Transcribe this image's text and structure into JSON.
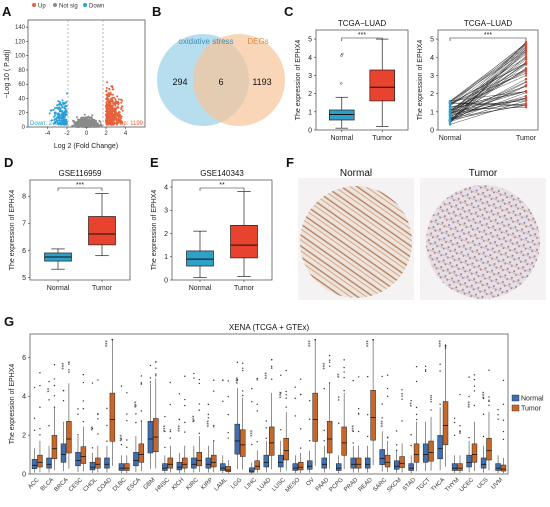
{
  "panels": {
    "A": {
      "letter": "A"
    },
    "B": {
      "letter": "B"
    },
    "C": {
      "letter": "C"
    },
    "D": {
      "letter": "D"
    },
    "E": {
      "letter": "E"
    },
    "F": {
      "letter": "F"
    },
    "G": {
      "letter": "G"
    }
  },
  "colors": {
    "up": "#e8603c",
    "down": "#2a9fd6",
    "notsig": "#8a8a8a",
    "normal": "#2fa0c8",
    "tumor": "#e8432e",
    "g_normal": "#3f6fb0",
    "g_tumor": "#c7672a"
  },
  "chart_data": [
    {
      "id": "A",
      "type": "scatter",
      "legend": [
        "Up",
        "Not sig",
        "Down"
      ],
      "xlabel": "Log 2 (Fold Change)",
      "ylabel": "−Log 10 ( P.adj)",
      "xticks": [
        "-4",
        "-2",
        "0",
        "2",
        "4"
      ],
      "yticks": [
        "0",
        "20",
        "40",
        "60",
        "80",
        "100",
        "120",
        "140"
      ],
      "xlim": [
        -6,
        6
      ],
      "ylim": [
        0,
        150
      ],
      "annotations": {
        "down_count": "Down: 270",
        "up_count": "Up: 1199"
      }
    },
    {
      "id": "B",
      "type": "venn",
      "sets": [
        "oxidative stress",
        "DEGs"
      ],
      "counts": {
        "only_a": "294",
        "both": "6",
        "only_b": "1193"
      }
    },
    {
      "id": "C1",
      "type": "box",
      "title": "TCGA−LUAD",
      "ylabel": "The expression of EPHX4",
      "categories": [
        "Normal",
        "Tumor"
      ],
      "yticks": [
        "0",
        "1",
        "2",
        "3",
        "4",
        "5"
      ],
      "ylim": [
        0,
        5.5
      ],
      "boxes": [
        {
          "q1": 0.55,
          "median": 0.85,
          "q3": 1.1,
          "lo": 0.1,
          "hi": 1.8
        },
        {
          "q1": 1.6,
          "median": 2.35,
          "q3": 3.3,
          "lo": 0.2,
          "hi": 5.0
        }
      ],
      "sig": "***"
    },
    {
      "id": "C2",
      "type": "paired",
      "title": "TCGA−LUAD",
      "ylabel": "The expression of EPHX4",
      "categories": [
        "Normal",
        "Tumor"
      ],
      "yticks": [
        "0",
        "1",
        "2",
        "3",
        "4",
        "5"
      ],
      "ylim": [
        0,
        5.5
      ],
      "sig": "***"
    },
    {
      "id": "D",
      "type": "box",
      "title": "GSE116959",
      "ylabel": "The expression of EPHX4",
      "categories": [
        "Normal",
        "Tumor"
      ],
      "yticks": [
        "5",
        "6",
        "7",
        "8"
      ],
      "ylim": [
        4.9,
        8.6
      ],
      "boxes": [
        {
          "q1": 5.6,
          "median": 5.75,
          "q3": 5.9,
          "lo": 5.3,
          "hi": 6.05
        },
        {
          "q1": 6.2,
          "median": 6.6,
          "q3": 7.25,
          "lo": 5.8,
          "hi": 8.1
        }
      ],
      "sig": "***"
    },
    {
      "id": "E",
      "type": "box",
      "title": "GSE140343",
      "ylabel": "The expression of EPHX4",
      "categories": [
        "Normal",
        "Tumor"
      ],
      "yticks": [
        "0",
        "1",
        "2",
        "3",
        "4"
      ],
      "ylim": [
        0,
        4.3
      ],
      "boxes": [
        {
          "q1": 0.6,
          "median": 0.9,
          "q3": 1.25,
          "lo": 0.1,
          "hi": 2.1
        },
        {
          "q1": 0.95,
          "median": 1.5,
          "q3": 2.35,
          "lo": 0.15,
          "hi": 3.8
        }
      ],
      "sig": "**"
    },
    {
      "id": "G",
      "type": "box",
      "title": "XENA (TCGA + GTEx)",
      "ylabel": "The expression of EPHX4",
      "legend": [
        "Normal",
        "Tumor"
      ],
      "yticks": [
        "0",
        "2",
        "4",
        "6"
      ],
      "ylim": [
        0,
        7.2
      ],
      "categories": [
        "ACC",
        "BLCA",
        "BRCA",
        "CESC",
        "CHOL",
        "COAD",
        "DLBC",
        "ESCA",
        "GBM",
        "HNSC",
        "KICH",
        "KIRC",
        "KIRP",
        "LAML",
        "LGG",
        "LIHC",
        "LUAD",
        "LUSC",
        "MESO",
        "OV",
        "PAAD",
        "PCPG",
        "PRAD",
        "READ",
        "SARC",
        "SKCM",
        "STAD",
        "TGCT",
        "THCA",
        "THYM",
        "UCEC",
        "UCS",
        "UVM"
      ],
      "normal_median": [
        0.45,
        0.5,
        1.0,
        0.7,
        0.35,
        0.5,
        0.3,
        0.7,
        1.8,
        0.3,
        0.35,
        0.5,
        0.5,
        0.3,
        1.7,
        0.15,
        0.6,
        0.6,
        0.3,
        0.4,
        0.5,
        0.3,
        0.5,
        0.5,
        0.8,
        0.4,
        0.3,
        1.0,
        1.3,
        0.3,
        0.6,
        0.5,
        0.3
      ],
      "tumor_median": [
        0.6,
        1.3,
        1.8,
        0.9,
        0.5,
        2.8,
        0.3,
        1.0,
        1.9,
        0.5,
        0.5,
        0.7,
        0.6,
        0.2,
        1.5,
        0.4,
        1.6,
        1.2,
        0.35,
        2.8,
        1.8,
        1.6,
        0.5,
        2.9,
        0.6,
        0.55,
        1.0,
        1.1,
        2.5,
        0.3,
        1.0,
        1.2,
        0.25
      ],
      "sig": [
        "",
        "**",
        "***",
        "",
        "**",
        "***",
        "***",
        "***",
        "",
        "***",
        "***",
        "***",
        "***",
        "",
        "***",
        "***",
        "***",
        "***",
        "",
        "***",
        "***",
        "**",
        "***",
        "***",
        "***",
        "",
        "**",
        "",
        "***",
        "",
        "***",
        "***",
        ""
      ]
    }
  ],
  "F": {
    "labels": [
      "Normal",
      "Tumor"
    ]
  }
}
